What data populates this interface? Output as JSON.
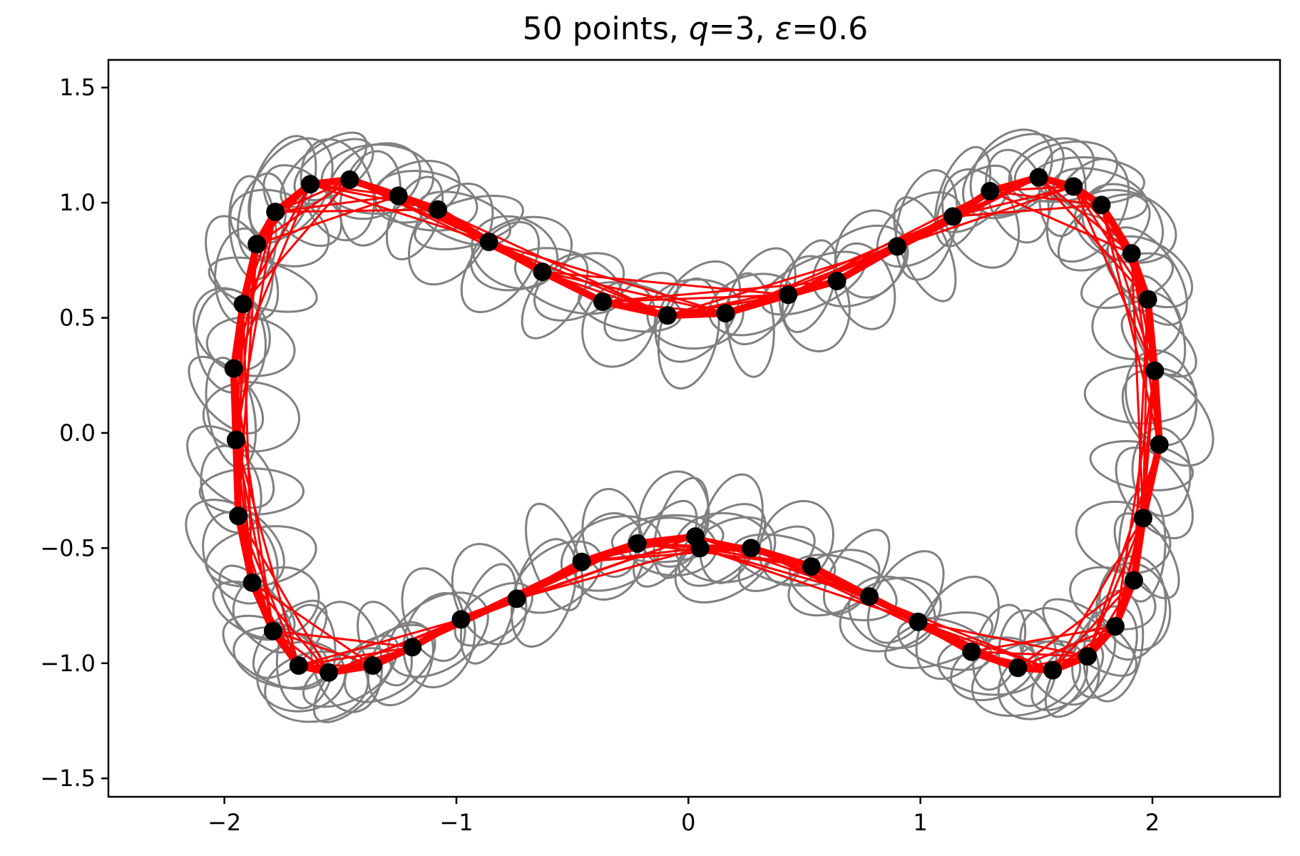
{
  "chart_data": {
    "type": "scatter",
    "title": {
      "prefix": "50 points, ",
      "var1": "q",
      "mid": "=3, ",
      "var2": "ε",
      "suffix": "=0.6"
    },
    "xlabel": "",
    "ylabel": "",
    "xlim": [
      -2.5,
      2.55
    ],
    "ylim": [
      -1.58,
      1.62
    ],
    "x_ticks": [
      -2,
      -1,
      0,
      1,
      2
    ],
    "x_tick_labels": [
      "−2",
      "−1",
      "0",
      "1",
      "2"
    ],
    "y_ticks": [
      1.5,
      1.0,
      0.5,
      0.0,
      -0.5,
      -1.0,
      -1.5
    ],
    "y_tick_labels": [
      "1.5",
      "1.0",
      "0.5",
      "0.0",
      "−0.5",
      "−1.0",
      "−1.5"
    ],
    "grid": false,
    "colors": {
      "points": "#000000",
      "path": "#ff0000",
      "ellipses": "#808080"
    },
    "series": [
      {
        "x": [
          -1.63,
          -1.46,
          -1.25,
          -1.08,
          -0.86,
          -0.63,
          -0.37,
          -0.09,
          0.16,
          0.43,
          0.64,
          0.9,
          1.14,
          1.3,
          1.51,
          1.66,
          1.78,
          1.91,
          1.98,
          2.01,
          2.03,
          1.96,
          1.92,
          1.84,
          1.72,
          1.57,
          1.42,
          1.22,
          0.99,
          0.78,
          0.53,
          0.27,
          0.05,
          0.03,
          -0.22,
          -0.46,
          -0.74,
          -0.98,
          -1.19,
          -1.36,
          -1.55,
          -1.68,
          -1.79,
          -1.88,
          -1.94,
          -1.95,
          -1.96,
          -1.92,
          -1.86,
          -1.78
        ],
        "y": [
          1.08,
          1.1,
          1.03,
          0.97,
          0.83,
          0.7,
          0.57,
          0.51,
          0.52,
          0.6,
          0.66,
          0.81,
          0.94,
          1.05,
          1.11,
          1.07,
          0.99,
          0.78,
          0.58,
          0.27,
          -0.05,
          -0.37,
          -0.64,
          -0.84,
          -0.97,
          -1.03,
          -1.02,
          -0.95,
          -0.82,
          -0.71,
          -0.58,
          -0.5,
          -0.5,
          -0.45,
          -0.48,
          -0.56,
          -0.72,
          -0.81,
          -0.93,
          -1.01,
          -1.04,
          -1.01,
          -0.86,
          -0.65,
          -0.36,
          -0.03,
          0.28,
          0.56,
          0.82,
          0.96
        ]
      }
    ]
  }
}
